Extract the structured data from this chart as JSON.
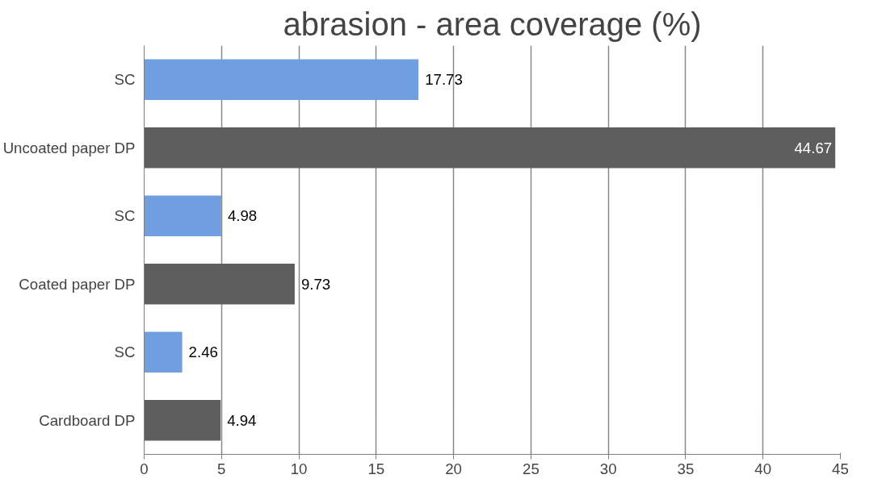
{
  "chart_data": {
    "type": "bar",
    "orientation": "horizontal",
    "title": "abrasion - area coverage (%)",
    "categories": [
      "SC",
      "Uncoated paper DP",
      "SC",
      "Coated paper DP",
      "SC",
      "Cardboard DP"
    ],
    "values": [
      17.73,
      44.67,
      4.98,
      9.73,
      2.46,
      4.94
    ],
    "colors": [
      "#6f9fe0",
      "#5e5e5e",
      "#6f9fe0",
      "#5e5e5e",
      "#6f9fe0",
      "#5e5e5e"
    ],
    "xlim": [
      0,
      45
    ],
    "xticks": [
      0,
      5,
      10,
      15,
      20,
      25,
      30,
      35,
      40,
      45
    ],
    "grid": "x",
    "data_labels": true
  }
}
